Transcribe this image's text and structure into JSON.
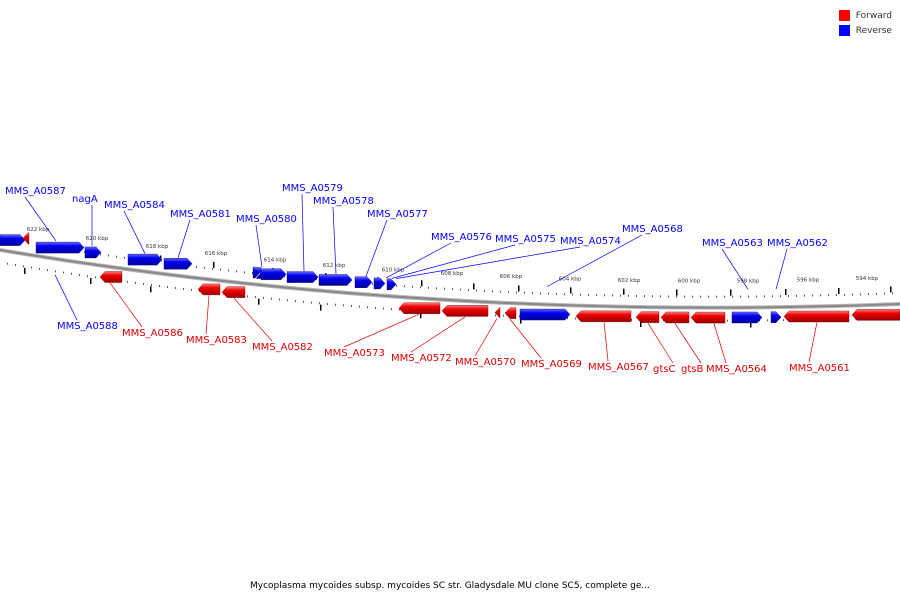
{
  "legend": {
    "items": [
      {
        "label": "Forward",
        "color": "#ff0000"
      },
      {
        "label": "Reverse",
        "color": "#0000ff"
      }
    ]
  },
  "caption": "Mycoplasma mycoides subsp. mycoides SC str. Gladysdale MU clone SC5, complete ge...",
  "colors": {
    "forward": "#ff0000",
    "reverse": "#0000ff",
    "backbone": "#888888"
  },
  "ticks": [
    "622 kbp",
    "620 kbp",
    "618 kbp",
    "616 kbp",
    "614 kbp",
    "612 kbp",
    "610 kbp",
    "608 kbp",
    "606 kbp",
    "604 kbp",
    "602 kbp",
    "600 kbp",
    "598 kbp",
    "596 kbp",
    "594 kbp"
  ],
  "genes_reverse": [
    "MMS_A0587",
    "nagA",
    "MMS_A0584",
    "MMS_A0581",
    "MMS_A0580",
    "MMS_A0579",
    "MMS_A0578",
    "MMS_A0577",
    "MMS_A0576",
    "MMS_A0575",
    "MMS_A0574",
    "MMS_A0568",
    "MMS_A0563",
    "MMS_A0562",
    "MMS_A0588"
  ],
  "genes_forward": [
    "MMS_A0586",
    "MMS_A0583",
    "MMS_A0582",
    "MMS_A0573",
    "MMS_A0572",
    "MMS_A0570",
    "MMS_A0569",
    "MMS_A0567",
    "gtsC",
    "gtsB",
    "MMS_A0564",
    "MMS_A0561"
  ]
}
